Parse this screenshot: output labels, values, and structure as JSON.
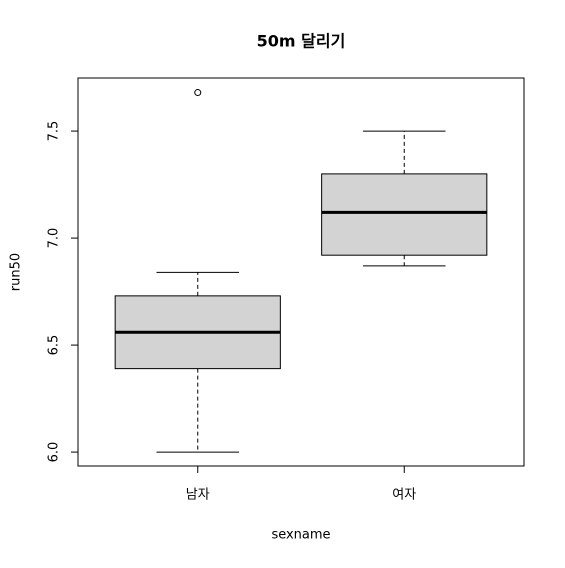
{
  "chart_data": {
    "type": "box",
    "title": "50m 달리기",
    "x_label": "sexname",
    "y_label": "run50",
    "categories": [
      "남자",
      "여자"
    ],
    "boxes": [
      {
        "min": 6.0,
        "q1": 6.39,
        "median": 6.56,
        "q3": 6.73,
        "max": 6.84,
        "outliers": [
          7.68
        ]
      },
      {
        "min": 6.87,
        "q1": 6.92,
        "median": 7.12,
        "q3": 7.3,
        "max": 7.5,
        "outliers": []
      }
    ],
    "color": "#d3d3d3",
    "ylim": [
      5.935,
      7.748
    ],
    "yticks": [
      {
        "value": 6,
        "label": "6.0"
      },
      {
        "value": 6.5,
        "label": "6.5"
      },
      {
        "value": 7,
        "label": "7.0"
      },
      {
        "value": 7.5,
        "label": "7.5"
      }
    ]
  }
}
